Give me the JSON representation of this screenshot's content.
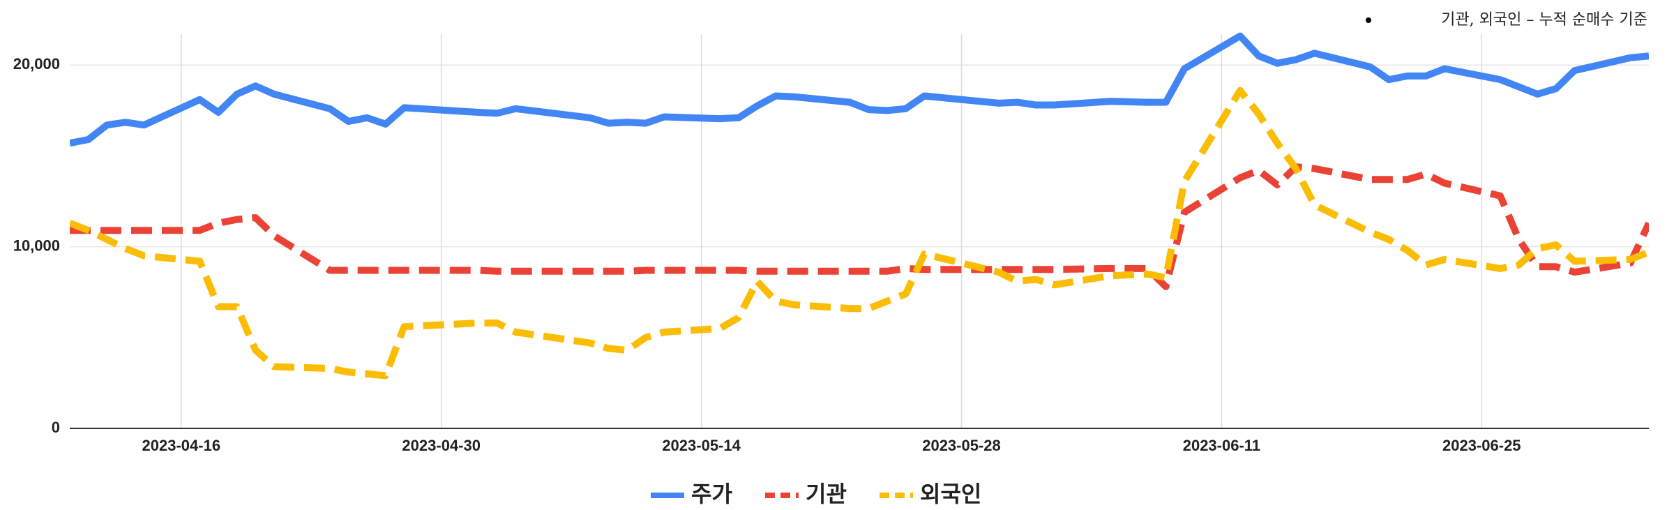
{
  "chart_data": {
    "type": "line",
    "annotation": "기관, 외국인 – 누적 순매수 기준",
    "x": [
      "2023-04-10",
      "2023-04-11",
      "2023-04-12",
      "2023-04-13",
      "2023-04-14",
      "2023-04-17",
      "2023-04-18",
      "2023-04-19",
      "2023-04-20",
      "2023-04-21",
      "2023-04-24",
      "2023-04-25",
      "2023-04-26",
      "2023-04-27",
      "2023-04-28",
      "2023-05-02",
      "2023-05-03",
      "2023-05-04",
      "2023-05-08",
      "2023-05-09",
      "2023-05-10",
      "2023-05-11",
      "2023-05-12",
      "2023-05-15",
      "2023-05-16",
      "2023-05-17",
      "2023-05-18",
      "2023-05-19",
      "2023-05-22",
      "2023-05-23",
      "2023-05-24",
      "2023-05-25",
      "2023-05-26",
      "2023-05-30",
      "2023-05-31",
      "2023-06-01",
      "2023-06-02",
      "2023-06-05",
      "2023-06-07",
      "2023-06-08",
      "2023-06-09",
      "2023-06-12",
      "2023-06-13",
      "2023-06-14",
      "2023-06-15",
      "2023-06-16",
      "2023-06-19",
      "2023-06-20",
      "2023-06-21",
      "2023-06-22",
      "2023-06-23",
      "2023-06-26",
      "2023-06-27",
      "2023-06-28",
      "2023-06-29",
      "2023-06-30",
      "2023-07-03",
      "2023-07-04"
    ],
    "series": [
      {
        "name": "주가",
        "color": "#4285f4",
        "dash": false,
        "values": [
          15700,
          15900,
          16700,
          16850,
          16700,
          18100,
          17400,
          18400,
          18850,
          18400,
          17600,
          16900,
          17100,
          16750,
          17650,
          17400,
          17350,
          17600,
          17100,
          16800,
          16850,
          16800,
          17150,
          17050,
          17100,
          17750,
          18300,
          18250,
          17950,
          17550,
          17500,
          17600,
          18300,
          17900,
          17950,
          17800,
          17800,
          18000,
          17950,
          17950,
          19800,
          21600,
          20500,
          20100,
          20300,
          20650,
          19900,
          19200,
          19400,
          19400,
          19800,
          19200,
          18800,
          18400,
          18700,
          19700,
          20400,
          20500
        ]
      },
      {
        "name": "기관",
        "color": "#ea4335",
        "dash": true,
        "values": [
          10900,
          10900,
          10900,
          10900,
          10900,
          10900,
          11300,
          11500,
          11600,
          10600,
          8700,
          8700,
          8700,
          8700,
          8700,
          8700,
          8650,
          8650,
          8650,
          8650,
          8650,
          8700,
          8700,
          8700,
          8700,
          8650,
          8650,
          8650,
          8650,
          8650,
          8650,
          8800,
          8750,
          8750,
          8750,
          8750,
          8750,
          8800,
          8800,
          7800,
          11900,
          13800,
          14200,
          13400,
          14400,
          14300,
          13700,
          13700,
          13700,
          14000,
          13500,
          12800,
          10400,
          8900,
          8900,
          8600,
          9100,
          11300
        ]
      },
      {
        "name": "외국인",
        "color": "#fbbc04",
        "dash": true,
        "values": [
          11300,
          10900,
          10400,
          9900,
          9500,
          9200,
          6700,
          6700,
          4300,
          3400,
          3300,
          3100,
          3000,
          2900,
          5600,
          5800,
          5800,
          5300,
          4700,
          4400,
          4300,
          5000,
          5300,
          5500,
          6100,
          8100,
          7000,
          6800,
          6600,
          6600,
          7000,
          7400,
          9600,
          8600,
          8100,
          8200,
          7900,
          8400,
          8500,
          8300,
          13600,
          18600,
          17300,
          15700,
          14300,
          12300,
          10800,
          10400,
          9800,
          9000,
          9300,
          8800,
          9000,
          9900,
          10100,
          9200,
          9300,
          9700
        ]
      }
    ],
    "xlim": [
      "2023-04-10",
      "2023-07-04"
    ],
    "xticks": [
      "2023-04-16",
      "2023-04-30",
      "2023-05-14",
      "2023-05-28",
      "2023-06-11",
      "2023-06-25"
    ],
    "ylim": [
      0,
      21700
    ],
    "yticks": [
      0,
      {
        "value": 10000,
        "label": "10,000"
      },
      {
        "value": 20000,
        "label": "20,000"
      }
    ],
    "grid": true,
    "legend": "bottom"
  }
}
